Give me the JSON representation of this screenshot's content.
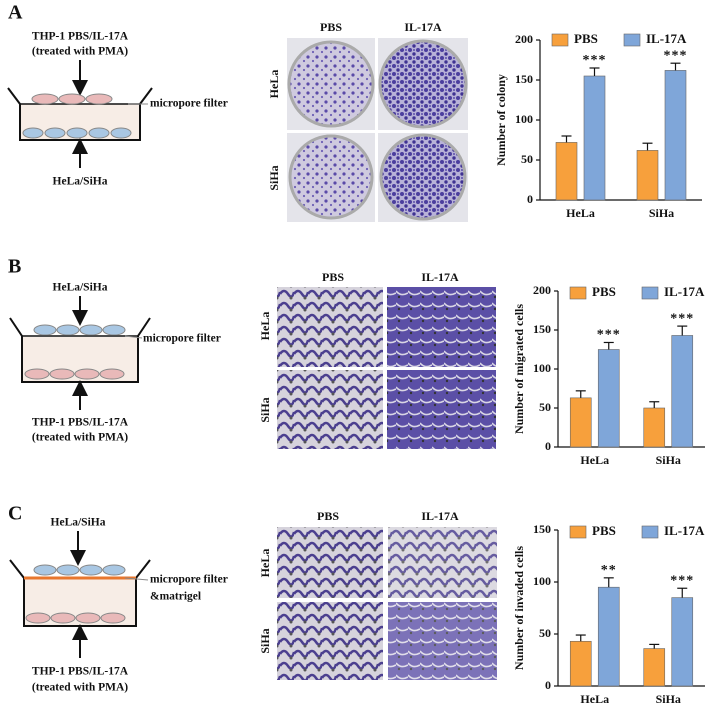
{
  "panels": [
    {
      "letter": "A",
      "diagram": {
        "top_label": "THP-1 PBS/IL-17A",
        "top_sublabel": "(treated with PMA)",
        "filter_label": "micropore filter",
        "bottom_label": "HeLa/SiHa"
      },
      "image_columns": [
        "PBS",
        "IL-17A"
      ],
      "image_rows": [
        "HeLa",
        "SiHa"
      ]
    },
    {
      "letter": "B",
      "diagram": {
        "top_label": "HeLa/SiHa",
        "filter_label": "micropore filter",
        "bottom_label": "THP-1 PBS/IL-17A",
        "bottom_sublabel": "(treated with PMA)"
      },
      "image_columns": [
        "PBS",
        "IL-17A"
      ],
      "image_rows": [
        "HeLa",
        "SiHa"
      ]
    },
    {
      "letter": "C",
      "diagram": {
        "top_label": "HeLa/SiHa",
        "filter_label": "micropore filter",
        "filter_sublabel": "&matrigel",
        "bottom_label": "THP-1 PBS/IL-17A",
        "bottom_sublabel": "(treated with PMA)"
      },
      "image_columns": [
        "PBS",
        "IL-17A"
      ],
      "image_rows": [
        "HeLa",
        "SiHa"
      ]
    }
  ],
  "chart_data": [
    {
      "type": "bar",
      "y_label": "Number of colony",
      "categories": [
        "HeLa",
        "SiHa"
      ],
      "series": [
        {
          "name": "PBS",
          "color": "#f7a03c",
          "values": [
            72,
            62
          ],
          "errors": [
            8,
            9
          ]
        },
        {
          "name": "IL-17A",
          "color": "#7fa6d9",
          "values": [
            155,
            162
          ],
          "errors": [
            10,
            9
          ],
          "annotations": [
            "***",
            "***"
          ]
        }
      ],
      "ylim": [
        0,
        200
      ],
      "yticks": [
        0,
        50,
        100,
        150,
        200
      ]
    },
    {
      "type": "bar",
      "y_label": "Number of migrated cells",
      "categories": [
        "HeLa",
        "SiHa"
      ],
      "series": [
        {
          "name": "PBS",
          "color": "#f7a03c",
          "values": [
            63,
            50
          ],
          "errors": [
            9,
            8
          ]
        },
        {
          "name": "IL-17A",
          "color": "#7fa6d9",
          "values": [
            125,
            143
          ],
          "errors": [
            9,
            12
          ],
          "annotations": [
            "***",
            "***"
          ]
        }
      ],
      "ylim": [
        0,
        200
      ],
      "yticks": [
        0,
        50,
        100,
        150,
        200
      ]
    },
    {
      "type": "bar",
      "y_label": "Number of invaded cells",
      "categories": [
        "HeLa",
        "SiHa"
      ],
      "series": [
        {
          "name": "PBS",
          "color": "#f7a03c",
          "values": [
            43,
            36
          ],
          "errors": [
            6,
            4
          ]
        },
        {
          "name": "IL-17A",
          "color": "#7fa6d9",
          "values": [
            95,
            85
          ],
          "errors": [
            9,
            9
          ],
          "annotations": [
            "**",
            "***"
          ]
        }
      ],
      "ylim": [
        0,
        150
      ],
      "yticks": [
        0,
        50,
        100,
        150
      ]
    }
  ]
}
